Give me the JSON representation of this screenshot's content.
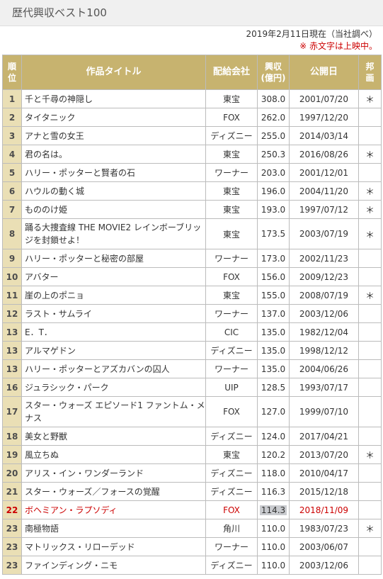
{
  "page": {
    "title": "歴代興収ベスト100"
  },
  "meta": {
    "as_of": "2019年2月11日現在（当社調べ）",
    "note": "※ 赤文字は上映中。"
  },
  "columns": {
    "rank": "順位",
    "title": "作品タイトル",
    "distributor": "配給会社",
    "revenue": "興収",
    "revenue_unit": "(億円)",
    "release": "公開日",
    "jp": "邦画"
  },
  "rows": [
    {
      "rank": "1",
      "title": "千と千尋の神隠し",
      "dist": "東宝",
      "rev": "308.0",
      "date": "2001/07/20",
      "jp": "＊"
    },
    {
      "rank": "2",
      "title": "タイタニック",
      "dist": "FOX",
      "rev": "262.0",
      "date": "1997/12/20",
      "jp": ""
    },
    {
      "rank": "3",
      "title": "アナと雪の女王",
      "dist": "ディズニー",
      "rev": "255.0",
      "date": "2014/03/14",
      "jp": ""
    },
    {
      "rank": "4",
      "title": "君の名は。",
      "dist": "東宝",
      "rev": "250.3",
      "date": "2016/08/26",
      "jp": "＊"
    },
    {
      "rank": "5",
      "title": "ハリー・ポッターと賢者の石",
      "dist": "ワーナー",
      "rev": "203.0",
      "date": "2001/12/01",
      "jp": ""
    },
    {
      "rank": "6",
      "title": "ハウルの動く城",
      "dist": "東宝",
      "rev": "196.0",
      "date": "2004/11/20",
      "jp": "＊"
    },
    {
      "rank": "7",
      "title": "もののけ姫",
      "dist": "東宝",
      "rev": "193.0",
      "date": "1997/07/12",
      "jp": "＊"
    },
    {
      "rank": "8",
      "title": "踊る大捜査線 THE MOVIE2 レインボーブリッジを封鎖せよ！",
      "dist": "東宝",
      "rev": "173.5",
      "date": "2003/07/19",
      "jp": "＊",
      "tall": true
    },
    {
      "rank": "9",
      "title": "ハリー・ポッターと秘密の部屋",
      "dist": "ワーナー",
      "rev": "173.0",
      "date": "2002/11/23",
      "jp": ""
    },
    {
      "rank": "10",
      "title": "アバター",
      "dist": "FOX",
      "rev": "156.0",
      "date": "2009/12/23",
      "jp": ""
    },
    {
      "rank": "11",
      "title": "崖の上のポニョ",
      "dist": "東宝",
      "rev": "155.0",
      "date": "2008/07/19",
      "jp": "＊"
    },
    {
      "rank": "12",
      "title": "ラスト・サムライ",
      "dist": "ワーナー",
      "rev": "137.0",
      "date": "2003/12/06",
      "jp": ""
    },
    {
      "rank": "13",
      "title": "E．T．",
      "dist": "CIC",
      "rev": "135.0",
      "date": "1982/12/04",
      "jp": ""
    },
    {
      "rank": "13",
      "title": "アルマゲドン",
      "dist": "ディズニー",
      "rev": "135.0",
      "date": "1998/12/12",
      "jp": ""
    },
    {
      "rank": "13",
      "title": "ハリー・ポッターとアズカバンの囚人",
      "dist": "ワーナー",
      "rev": "135.0",
      "date": "2004/06/26",
      "jp": ""
    },
    {
      "rank": "16",
      "title": "ジュラシック・パーク",
      "dist": "UIP",
      "rev": "128.5",
      "date": "1993/07/17",
      "jp": ""
    },
    {
      "rank": "17",
      "title": "スター・ウォーズ エピソード1 ファントム・メナス",
      "dist": "FOX",
      "rev": "127.0",
      "date": "1999/07/10",
      "jp": "",
      "tall": true
    },
    {
      "rank": "18",
      "title": "美女と野獣",
      "dist": "ディズニー",
      "rev": "124.0",
      "date": "2017/04/21",
      "jp": ""
    },
    {
      "rank": "19",
      "title": "風立ちぬ",
      "dist": "東宝",
      "rev": "120.2",
      "date": "2013/07/20",
      "jp": "＊"
    },
    {
      "rank": "20",
      "title": "アリス・イン・ワンダーランド",
      "dist": "ディズニー",
      "rev": "118.0",
      "date": "2010/04/17",
      "jp": ""
    },
    {
      "rank": "21",
      "title": "スター・ウォーズ／フォースの覚醒",
      "dist": "ディズニー",
      "rev": "116.3",
      "date": "2015/12/18",
      "jp": ""
    },
    {
      "rank": "22",
      "title": "ボヘミアン・ラプソディ",
      "dist": "FOX",
      "rev": "114.3",
      "date": "2018/11/09",
      "jp": "",
      "showing": true
    },
    {
      "rank": "23",
      "title": "南極物語",
      "dist": "角川",
      "rev": "110.0",
      "date": "1983/07/23",
      "jp": "＊"
    },
    {
      "rank": "23",
      "title": "マトリックス・リローデッド",
      "dist": "ワーナー",
      "rev": "110.0",
      "date": "2003/06/07",
      "jp": ""
    },
    {
      "rank": "23",
      "title": "ファインディング・ニモ",
      "dist": "ディズニー",
      "rev": "110.0",
      "date": "2003/12/06",
      "jp": ""
    }
  ],
  "colors": {
    "header": "#c7b36f",
    "rank_cell": "#eadfb5",
    "showing_text": "#cc0000"
  }
}
